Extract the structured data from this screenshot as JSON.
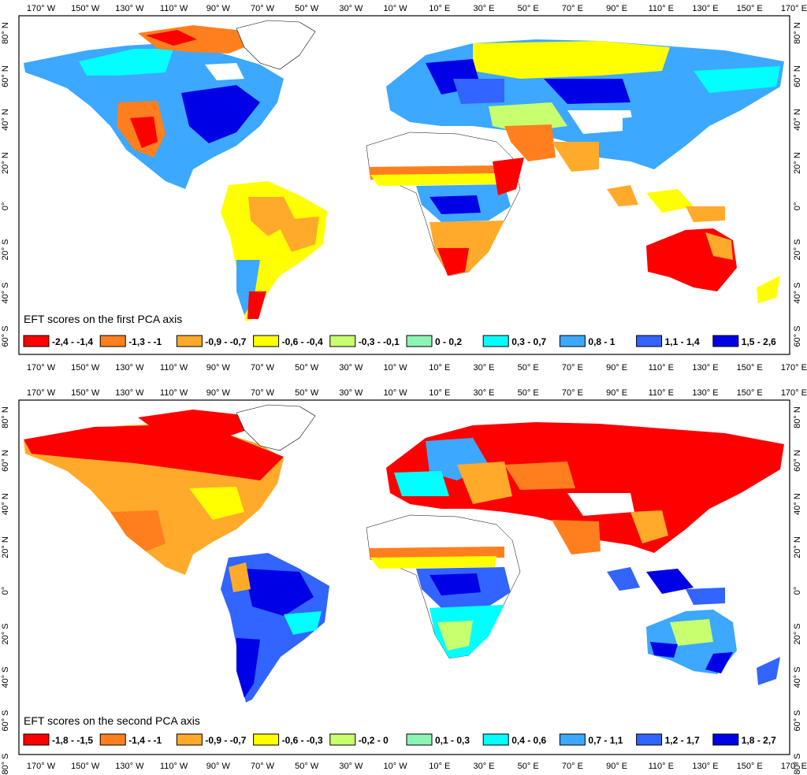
{
  "lon_labels": [
    "170° W",
    "150° W",
    "130° W",
    "110° W",
    "90° W",
    "70° W",
    "50° W",
    "30° W",
    "10° W",
    "10° E",
    "30° E",
    "50° E",
    "70° E",
    "90° E",
    "110° E",
    "130° E",
    "150° E",
    "170° E"
  ],
  "lat_labels": [
    "80° N",
    "60° N",
    "40° N",
    "20° N",
    "0°",
    "20° S",
    "40° S",
    "60° S"
  ],
  "lat_labels_panel2": [
    "80° N",
    "60° N",
    "40° N",
    "20° N",
    "0°",
    "20° S",
    "40° S",
    "60° S",
    "80° S"
  ],
  "panels": [
    {
      "legend_title": "EFT scores on the first PCA axis",
      "classes": [
        {
          "label": "-2,4 - -1,4",
          "color": "#ff0000"
        },
        {
          "label": "-1,3 - -1",
          "color": "#ff7f1e"
        },
        {
          "label": "-0,9 - -0,7",
          "color": "#ffaa2a"
        },
        {
          "label": "-0,6 - -0,4",
          "color": "#ffff00"
        },
        {
          "label": "-0,3 - -0,1",
          "color": "#c8ff6e"
        },
        {
          "label": "0 - 0,2",
          "color": "#8cf5b4"
        },
        {
          "label": "0,3 - 0,7",
          "color": "#00ffff"
        },
        {
          "label": "0,8 - 1",
          "color": "#3ca8ff"
        },
        {
          "label": "1,1 - 1,4",
          "color": "#3264ff"
        },
        {
          "label": "1,5 - 2,6",
          "color": "#0000e6"
        }
      ]
    },
    {
      "legend_title": "EFT scores on the second PCA axis",
      "classes": [
        {
          "label": "-1,8 - -1,5",
          "color": "#ff0000"
        },
        {
          "label": "-1,4 - -1",
          "color": "#ff7f1e"
        },
        {
          "label": "-0,9 - -0,7",
          "color": "#ffaa2a"
        },
        {
          "label": "-0,6 - -0,3",
          "color": "#ffff00"
        },
        {
          "label": "-0,2 - 0",
          "color": "#c8ff6e"
        },
        {
          "label": "0,1 - 0,3",
          "color": "#8cf5b4"
        },
        {
          "label": "0,4 - 0,6",
          "color": "#00ffff"
        },
        {
          "label": "0,7 - 1,1",
          "color": "#3ca8ff"
        },
        {
          "label": "1,2 - 1,7",
          "color": "#3264ff"
        },
        {
          "label": "1,8 - 2,7",
          "color": "#0000e6"
        }
      ]
    }
  ]
}
